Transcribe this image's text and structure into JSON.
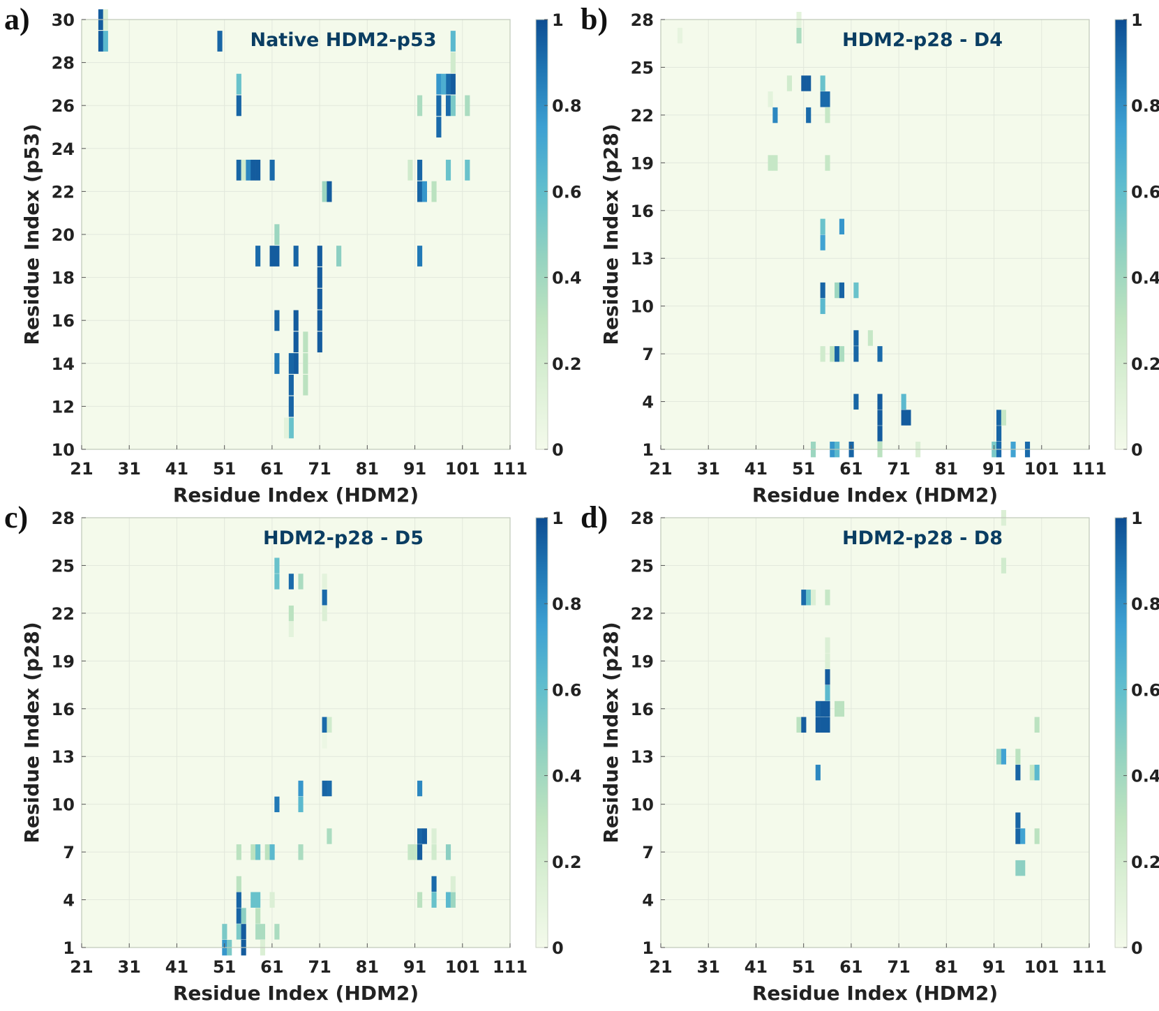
{
  "colorscale": [
    "#f4faeb",
    "#dcf0d6",
    "#bfe4c0",
    "#93d2c0",
    "#62bfcd",
    "#3da0d2",
    "#2077b4",
    "#0d4d92"
  ],
  "chart_data": [
    {
      "type": "heatmap",
      "letter": "a)",
      "title": "Native HDM2-p53",
      "xlabel": "Residue Index (HDM2)",
      "ylabel": "Residue Index (p53)",
      "xlim": [
        21,
        111
      ],
      "ylim": [
        10,
        30
      ],
      "xticks": [
        21,
        31,
        41,
        51,
        61,
        71,
        81,
        91,
        101,
        111
      ],
      "yticks": [
        10,
        12,
        14,
        16,
        18,
        20,
        22,
        24,
        26,
        28,
        30
      ],
      "colorbar_ticks": [
        "0",
        "0.2",
        "0.4",
        "0.6",
        "0.8",
        "1"
      ],
      "cells": [
        [
          25,
          29,
          0.95
        ],
        [
          25,
          30,
          0.95
        ],
        [
          26,
          29,
          0.6
        ],
        [
          26,
          30,
          0.15
        ],
        [
          50,
          29,
          0.92
        ],
        [
          99,
          29,
          0.6
        ],
        [
          99,
          28,
          0.2
        ],
        [
          99,
          27,
          0.95
        ],
        [
          98,
          27,
          0.9
        ],
        [
          96,
          27,
          0.75
        ],
        [
          97,
          27,
          0.65
        ],
        [
          54,
          27,
          0.55
        ],
        [
          54,
          26,
          0.92
        ],
        [
          92,
          26,
          0.35
        ],
        [
          96,
          26,
          0.9
        ],
        [
          96,
          25,
          0.9
        ],
        [
          98,
          26,
          0.9
        ],
        [
          99,
          26,
          0.5
        ],
        [
          102,
          26,
          0.35
        ],
        [
          54,
          23,
          0.92
        ],
        [
          55,
          23,
          0.2
        ],
        [
          56,
          23,
          0.8
        ],
        [
          57,
          23,
          0.95
        ],
        [
          58,
          23,
          0.95
        ],
        [
          61,
          23,
          0.9
        ],
        [
          90,
          23,
          0.2
        ],
        [
          92,
          23,
          0.92
        ],
        [
          98,
          23,
          0.55
        ],
        [
          102,
          23,
          0.55
        ],
        [
          72,
          22,
          0.4
        ],
        [
          73,
          22,
          0.95
        ],
        [
          92,
          22,
          0.92
        ],
        [
          93,
          22,
          0.75
        ],
        [
          95,
          22,
          0.3
        ],
        [
          62,
          20,
          0.4
        ],
        [
          58,
          19,
          0.9
        ],
        [
          61,
          19,
          0.95
        ],
        [
          62,
          19,
          0.95
        ],
        [
          66,
          19,
          0.92
        ],
        [
          71,
          19,
          0.95
        ],
        [
          75,
          19,
          0.45
        ],
        [
          92,
          19,
          0.85
        ],
        [
          71,
          18,
          0.95
        ],
        [
          71,
          17,
          0.95
        ],
        [
          71,
          16,
          0.95
        ],
        [
          71,
          15,
          0.95
        ],
        [
          62,
          16,
          0.92
        ],
        [
          66,
          16,
          0.95
        ],
        [
          66,
          15,
          0.95
        ],
        [
          66,
          14,
          0.95
        ],
        [
          68,
          15,
          0.3
        ],
        [
          68,
          14,
          0.3
        ],
        [
          68,
          13,
          0.3
        ],
        [
          62,
          14,
          0.85
        ],
        [
          65,
          14,
          0.92
        ],
        [
          65,
          13,
          0.92
        ],
        [
          65,
          12,
          0.92
        ],
        [
          65,
          11,
          0.55
        ],
        [
          64,
          11,
          0.1
        ]
      ]
    },
    {
      "type": "heatmap",
      "letter": "b)",
      "title": "HDM2-p28 - D4",
      "xlabel": "Residue Index (HDM2)",
      "ylabel": "Residue Index (p28)",
      "xlim": [
        21,
        111
      ],
      "ylim": [
        1,
        28
      ],
      "xticks": [
        21,
        31,
        41,
        51,
        61,
        71,
        81,
        91,
        101,
        111
      ],
      "yticks": [
        1,
        4,
        7,
        10,
        13,
        16,
        19,
        22,
        25,
        28
      ],
      "colorbar_ticks": [
        "0",
        "0.2",
        "0.4",
        "0.6",
        "0.8",
        "1"
      ],
      "cells": [
        [
          25,
          27,
          0.08
        ],
        [
          50,
          27,
          0.35
        ],
        [
          50,
          28,
          0.1
        ],
        [
          48,
          24,
          0.2
        ],
        [
          51,
          24,
          0.95
        ],
        [
          52,
          24,
          0.95
        ],
        [
          55,
          24,
          0.55
        ],
        [
          55,
          23,
          0.9
        ],
        [
          56,
          23,
          0.9
        ],
        [
          45,
          22,
          0.8
        ],
        [
          52,
          22,
          0.9
        ],
        [
          56,
          22,
          0.25
        ],
        [
          44,
          23,
          0.1
        ],
        [
          44,
          19,
          0.25
        ],
        [
          45,
          19,
          0.25
        ],
        [
          56,
          19,
          0.25
        ],
        [
          55,
          15,
          0.55
        ],
        [
          59,
          15,
          0.75
        ],
        [
          55,
          14,
          0.7
        ],
        [
          55,
          11,
          0.92
        ],
        [
          58,
          11,
          0.4
        ],
        [
          59,
          11,
          0.92
        ],
        [
          62,
          11,
          0.55
        ],
        [
          55,
          10,
          0.6
        ],
        [
          62,
          8,
          0.92
        ],
        [
          65,
          8,
          0.25
        ],
        [
          62,
          7,
          0.92
        ],
        [
          55,
          7,
          0.2
        ],
        [
          57,
          7,
          0.3
        ],
        [
          58,
          7,
          0.92
        ],
        [
          59,
          7,
          0.35
        ],
        [
          67,
          7,
          0.9
        ],
        [
          62,
          4,
          0.92
        ],
        [
          67,
          4,
          0.95
        ],
        [
          67,
          3,
          0.95
        ],
        [
          67,
          2,
          0.95
        ],
        [
          72,
          4,
          0.6
        ],
        [
          72,
          3,
          0.95
        ],
        [
          73,
          3,
          0.95
        ],
        [
          92,
          3,
          0.92
        ],
        [
          93,
          3,
          0.25
        ],
        [
          92,
          2,
          0.92
        ],
        [
          53,
          1,
          0.4
        ],
        [
          57,
          1,
          0.75
        ],
        [
          58,
          1,
          0.6
        ],
        [
          61,
          1,
          0.92
        ],
        [
          67,
          1,
          0.3
        ],
        [
          75,
          1,
          0.15
        ],
        [
          91,
          1,
          0.5
        ],
        [
          92,
          1,
          0.9
        ],
        [
          95,
          1,
          0.7
        ],
        [
          98,
          1,
          0.9
        ]
      ]
    },
    {
      "type": "heatmap",
      "letter": "c)",
      "title": "HDM2-p28 - D5",
      "xlabel": "Residue Index (HDM2)",
      "ylabel": "Residue Index (p28)",
      "xlim": [
        21,
        111
      ],
      "ylim": [
        1,
        28
      ],
      "xticks": [
        21,
        31,
        41,
        51,
        61,
        71,
        81,
        91,
        101,
        111
      ],
      "yticks": [
        1,
        4,
        7,
        10,
        13,
        16,
        19,
        22,
        25,
        28
      ],
      "colorbar_ticks": [
        "0",
        "0.2",
        "0.4",
        "0.6",
        "0.8",
        "1"
      ],
      "cells": [
        [
          62,
          25,
          0.55
        ],
        [
          62,
          24,
          0.55
        ],
        [
          65,
          24,
          0.9
        ],
        [
          67,
          24,
          0.35
        ],
        [
          72,
          24,
          0.1
        ],
        [
          72,
          23,
          0.9
        ],
        [
          72,
          22,
          0.15
        ],
        [
          65,
          22,
          0.3
        ],
        [
          65,
          21,
          0.1
        ],
        [
          72,
          15,
          0.9
        ],
        [
          73,
          15,
          0.2
        ],
        [
          72,
          14,
          0.05
        ],
        [
          67,
          11,
          0.75
        ],
        [
          72,
          11,
          0.92
        ],
        [
          73,
          11,
          0.9
        ],
        [
          92,
          11,
          0.8
        ],
        [
          62,
          10,
          0.85
        ],
        [
          67,
          10,
          0.6
        ],
        [
          73,
          8,
          0.35
        ],
        [
          92,
          8,
          0.92
        ],
        [
          93,
          8,
          0.95
        ],
        [
          95,
          8,
          0.15
        ],
        [
          54,
          7,
          0.3
        ],
        [
          57,
          7,
          0.3
        ],
        [
          58,
          7,
          0.55
        ],
        [
          60,
          7,
          0.3
        ],
        [
          61,
          7,
          0.6
        ],
        [
          67,
          7,
          0.35
        ],
        [
          90,
          7,
          0.25
        ],
        [
          91,
          7,
          0.25
        ],
        [
          92,
          7,
          0.95
        ],
        [
          95,
          7,
          0.2
        ],
        [
          98,
          7,
          0.45
        ],
        [
          54,
          5,
          0.3
        ],
        [
          95,
          5,
          0.9
        ],
        [
          99,
          5,
          0.15
        ],
        [
          54,
          4,
          0.92
        ],
        [
          57,
          4,
          0.55
        ],
        [
          58,
          4,
          0.55
        ],
        [
          61,
          4,
          0.15
        ],
        [
          92,
          4,
          0.3
        ],
        [
          95,
          4,
          0.55
        ],
        [
          98,
          4,
          0.6
        ],
        [
          99,
          4,
          0.4
        ],
        [
          54,
          3,
          0.92
        ],
        [
          55,
          3,
          0.45
        ],
        [
          58,
          3,
          0.3
        ],
        [
          51,
          2,
          0.5
        ],
        [
          54,
          2,
          0.5
        ],
        [
          55,
          2,
          0.95
        ],
        [
          58,
          2,
          0.35
        ],
        [
          59,
          2,
          0.35
        ],
        [
          62,
          2,
          0.35
        ],
        [
          51,
          1,
          0.75
        ],
        [
          52,
          1,
          0.5
        ],
        [
          55,
          1,
          0.95
        ],
        [
          59,
          1,
          0.15
        ]
      ]
    },
    {
      "type": "heatmap",
      "letter": "d)",
      "title": "HDM2-p28 - D8",
      "xlabel": "Residue Index (HDM2)",
      "ylabel": "Residue Index (p28)",
      "xlim": [
        21,
        111
      ],
      "ylim": [
        1,
        28
      ],
      "xticks": [
        21,
        31,
        41,
        51,
        61,
        71,
        81,
        91,
        101,
        111
      ],
      "yticks": [
        1,
        4,
        7,
        10,
        13,
        16,
        19,
        22,
        25,
        28
      ],
      "colorbar_ticks": [
        "0",
        "0.2",
        "0.4",
        "0.6",
        "0.8",
        "1"
      ],
      "cells": [
        [
          51,
          23,
          0.9
        ],
        [
          52,
          23,
          0.55
        ],
        [
          53,
          23,
          0.15
        ],
        [
          56,
          23,
          0.25
        ],
        [
          93,
          25,
          0.2
        ],
        [
          93,
          28,
          0.15
        ],
        [
          56,
          20,
          0.15
        ],
        [
          56,
          19,
          0.15
        ],
        [
          56,
          18,
          0.95
        ],
        [
          56,
          17,
          0.6
        ],
        [
          54,
          16,
          0.92
        ],
        [
          55,
          16,
          0.95
        ],
        [
          56,
          16,
          0.95
        ],
        [
          58,
          16,
          0.3
        ],
        [
          59,
          16,
          0.3
        ],
        [
          50,
          15,
          0.3
        ],
        [
          51,
          15,
          0.95
        ],
        [
          54,
          15,
          0.95
        ],
        [
          55,
          15,
          0.95
        ],
        [
          56,
          15,
          0.95
        ],
        [
          100,
          15,
          0.3
        ],
        [
          92,
          13,
          0.4
        ],
        [
          93,
          13,
          0.7
        ],
        [
          96,
          13,
          0.3
        ],
        [
          54,
          12,
          0.8
        ],
        [
          96,
          12,
          0.92
        ],
        [
          99,
          12,
          0.25
        ],
        [
          100,
          12,
          0.6
        ],
        [
          96,
          9,
          0.92
        ],
        [
          96,
          8,
          0.92
        ],
        [
          97,
          8,
          0.7
        ],
        [
          100,
          8,
          0.3
        ],
        [
          96,
          6,
          0.45
        ],
        [
          97,
          6,
          0.45
        ]
      ]
    }
  ]
}
